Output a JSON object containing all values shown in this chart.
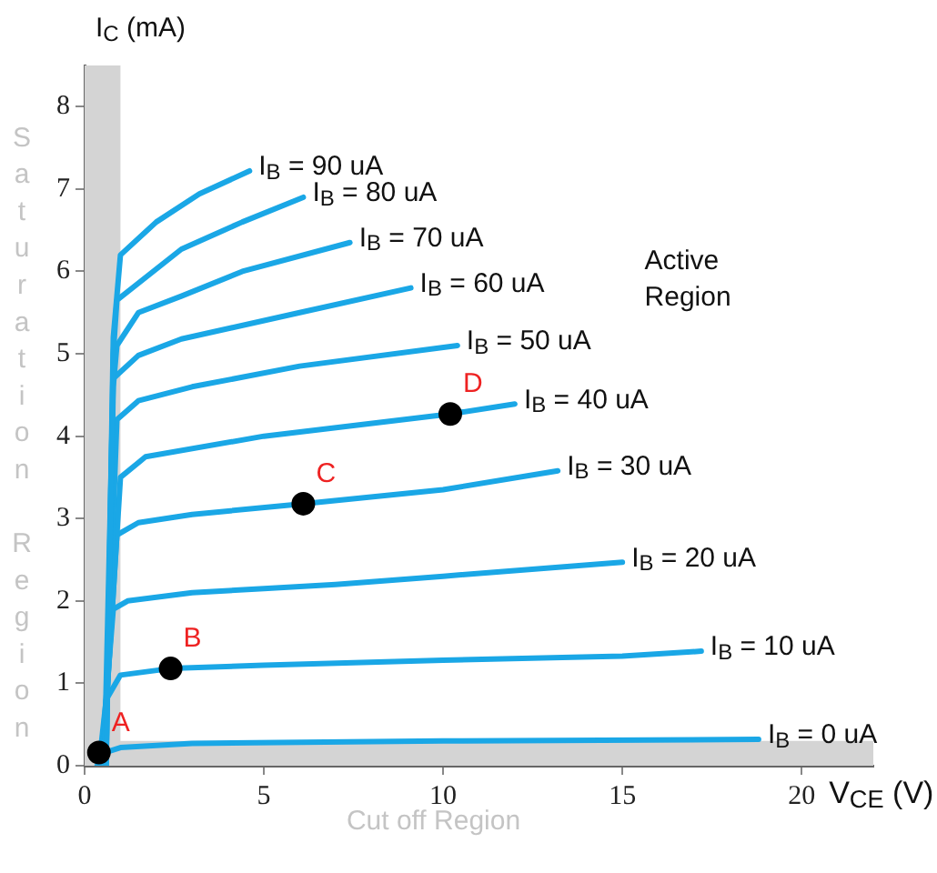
{
  "chart_data": {
    "type": "line",
    "xlabel": "V$_{CE}$ (V)",
    "ylabel": "I$_{C}$ (mA)",
    "xlim": [
      0,
      22
    ],
    "xticks": [
      0,
      5,
      10,
      15,
      20
    ],
    "ylim": [
      0,
      8.5
    ],
    "yticks": [
      0,
      1,
      2,
      3,
      4,
      5,
      6,
      7,
      8
    ],
    "grid": false,
    "legend": false,
    "marker": "none",
    "line_style": "solid",
    "series": [
      {
        "name": "I$_{B}$ = 90 uA",
        "color": "#1aa7e6",
        "x": [
          0.6,
          0.8,
          1.0,
          2.0,
          3.2,
          4.6
        ],
        "values": [
          0,
          5.2,
          6.2,
          6.6,
          6.94,
          7.22
        ]
      },
      {
        "name": "I$_{B}$ = 80 uA",
        "color": "#1aa7e6",
        "x": [
          0.6,
          0.8,
          0.9,
          2.7,
          4.4,
          6.1
        ],
        "values": [
          0,
          5.0,
          5.65,
          6.27,
          6.6,
          6.9
        ]
      },
      {
        "name": "I$_{B}$ = 70 uA",
        "color": "#1aa7e6",
        "x": [
          0.6,
          0.8,
          0.9,
          1.5,
          2.7,
          4.4,
          7.4
        ],
        "values": [
          0,
          4.6,
          5.1,
          5.5,
          5.7,
          6.0,
          6.35
        ]
      },
      {
        "name": "I$_{B}$ = 60 uA",
        "color": "#1aa7e6",
        "x": [
          0.55,
          0.8,
          1.5,
          2.7,
          6.0,
          9.1
        ],
        "values": [
          0,
          4.7,
          4.98,
          5.18,
          5.5,
          5.8
        ]
      },
      {
        "name": "I$_{B}$ = 50 uA",
        "color": "#1aa7e6",
        "x": [
          0.55,
          0.9,
          1.5,
          3.0,
          6.0,
          10.4
        ],
        "values": [
          0,
          4.2,
          4.43,
          4.6,
          4.85,
          5.1
        ]
      },
      {
        "name": "I$_{B}$ = 40 uA",
        "color": "#1aa7e6",
        "x": [
          0.5,
          1.0,
          1.7,
          5.0,
          10.2,
          12.0
        ],
        "values": [
          0,
          3.5,
          3.75,
          4.0,
          4.27,
          4.39
        ]
      },
      {
        "name": "I$_{B}$ = 30 uA",
        "color": "#1aa7e6",
        "x": [
          0.5,
          0.9,
          1.5,
          3.0,
          6.1,
          10.0,
          13.2
        ],
        "values": [
          0,
          2.8,
          2.95,
          3.05,
          3.18,
          3.35,
          3.58
        ]
      },
      {
        "name": "I$_{B}$ = 20 uA",
        "color": "#1aa7e6",
        "x": [
          0.45,
          0.8,
          1.2,
          3.0,
          5.0,
          7.0,
          10.0,
          15.0
        ],
        "values": [
          0,
          1.9,
          2.0,
          2.1,
          2.15,
          2.2,
          2.3,
          2.47
        ]
      },
      {
        "name": "I$_{B}$ = 10 uA",
        "color": "#1aa7e6",
        "x": [
          0.4,
          0.6,
          1.0,
          2.4,
          5.0,
          10.0,
          15.0,
          17.2
        ],
        "values": [
          0,
          0.8,
          1.1,
          1.18,
          1.22,
          1.28,
          1.33,
          1.39
        ]
      },
      {
        "name": "I$_{B}$ = 0 uA",
        "color": "#1aa7e6",
        "x": [
          0.35,
          0.5,
          1.0,
          3.0,
          10.0,
          18.8
        ],
        "values": [
          0,
          0.15,
          0.22,
          0.27,
          0.3,
          0.32
        ]
      },
      {
        "type": "scatter",
        "marker": "circle",
        "color": "#000000",
        "x": [
          0.4,
          2.4,
          6.1,
          10.2
        ],
        "values": [
          0.16,
          1.18,
          3.18,
          4.27
        ]
      }
    ],
    "bands": [
      {
        "axis": "x",
        "from": 0,
        "to": 1,
        "label": "Saturation Region",
        "color": "#d4d4d4"
      },
      {
        "axis": "y",
        "from": 0,
        "to": 0.3,
        "label": "Cut off Region",
        "color": "#d4d4d4"
      }
    ],
    "annotations": [
      "Active Region",
      {
        "text": "A",
        "x": 0.4,
        "y": 0.16
      },
      {
        "text": "B",
        "x": 2.4,
        "y": 1.18
      },
      {
        "text": "C",
        "x": 6.1,
        "y": 3.18
      },
      {
        "text": "D",
        "x": 10.2,
        "y": 4.27
      }
    ]
  }
}
